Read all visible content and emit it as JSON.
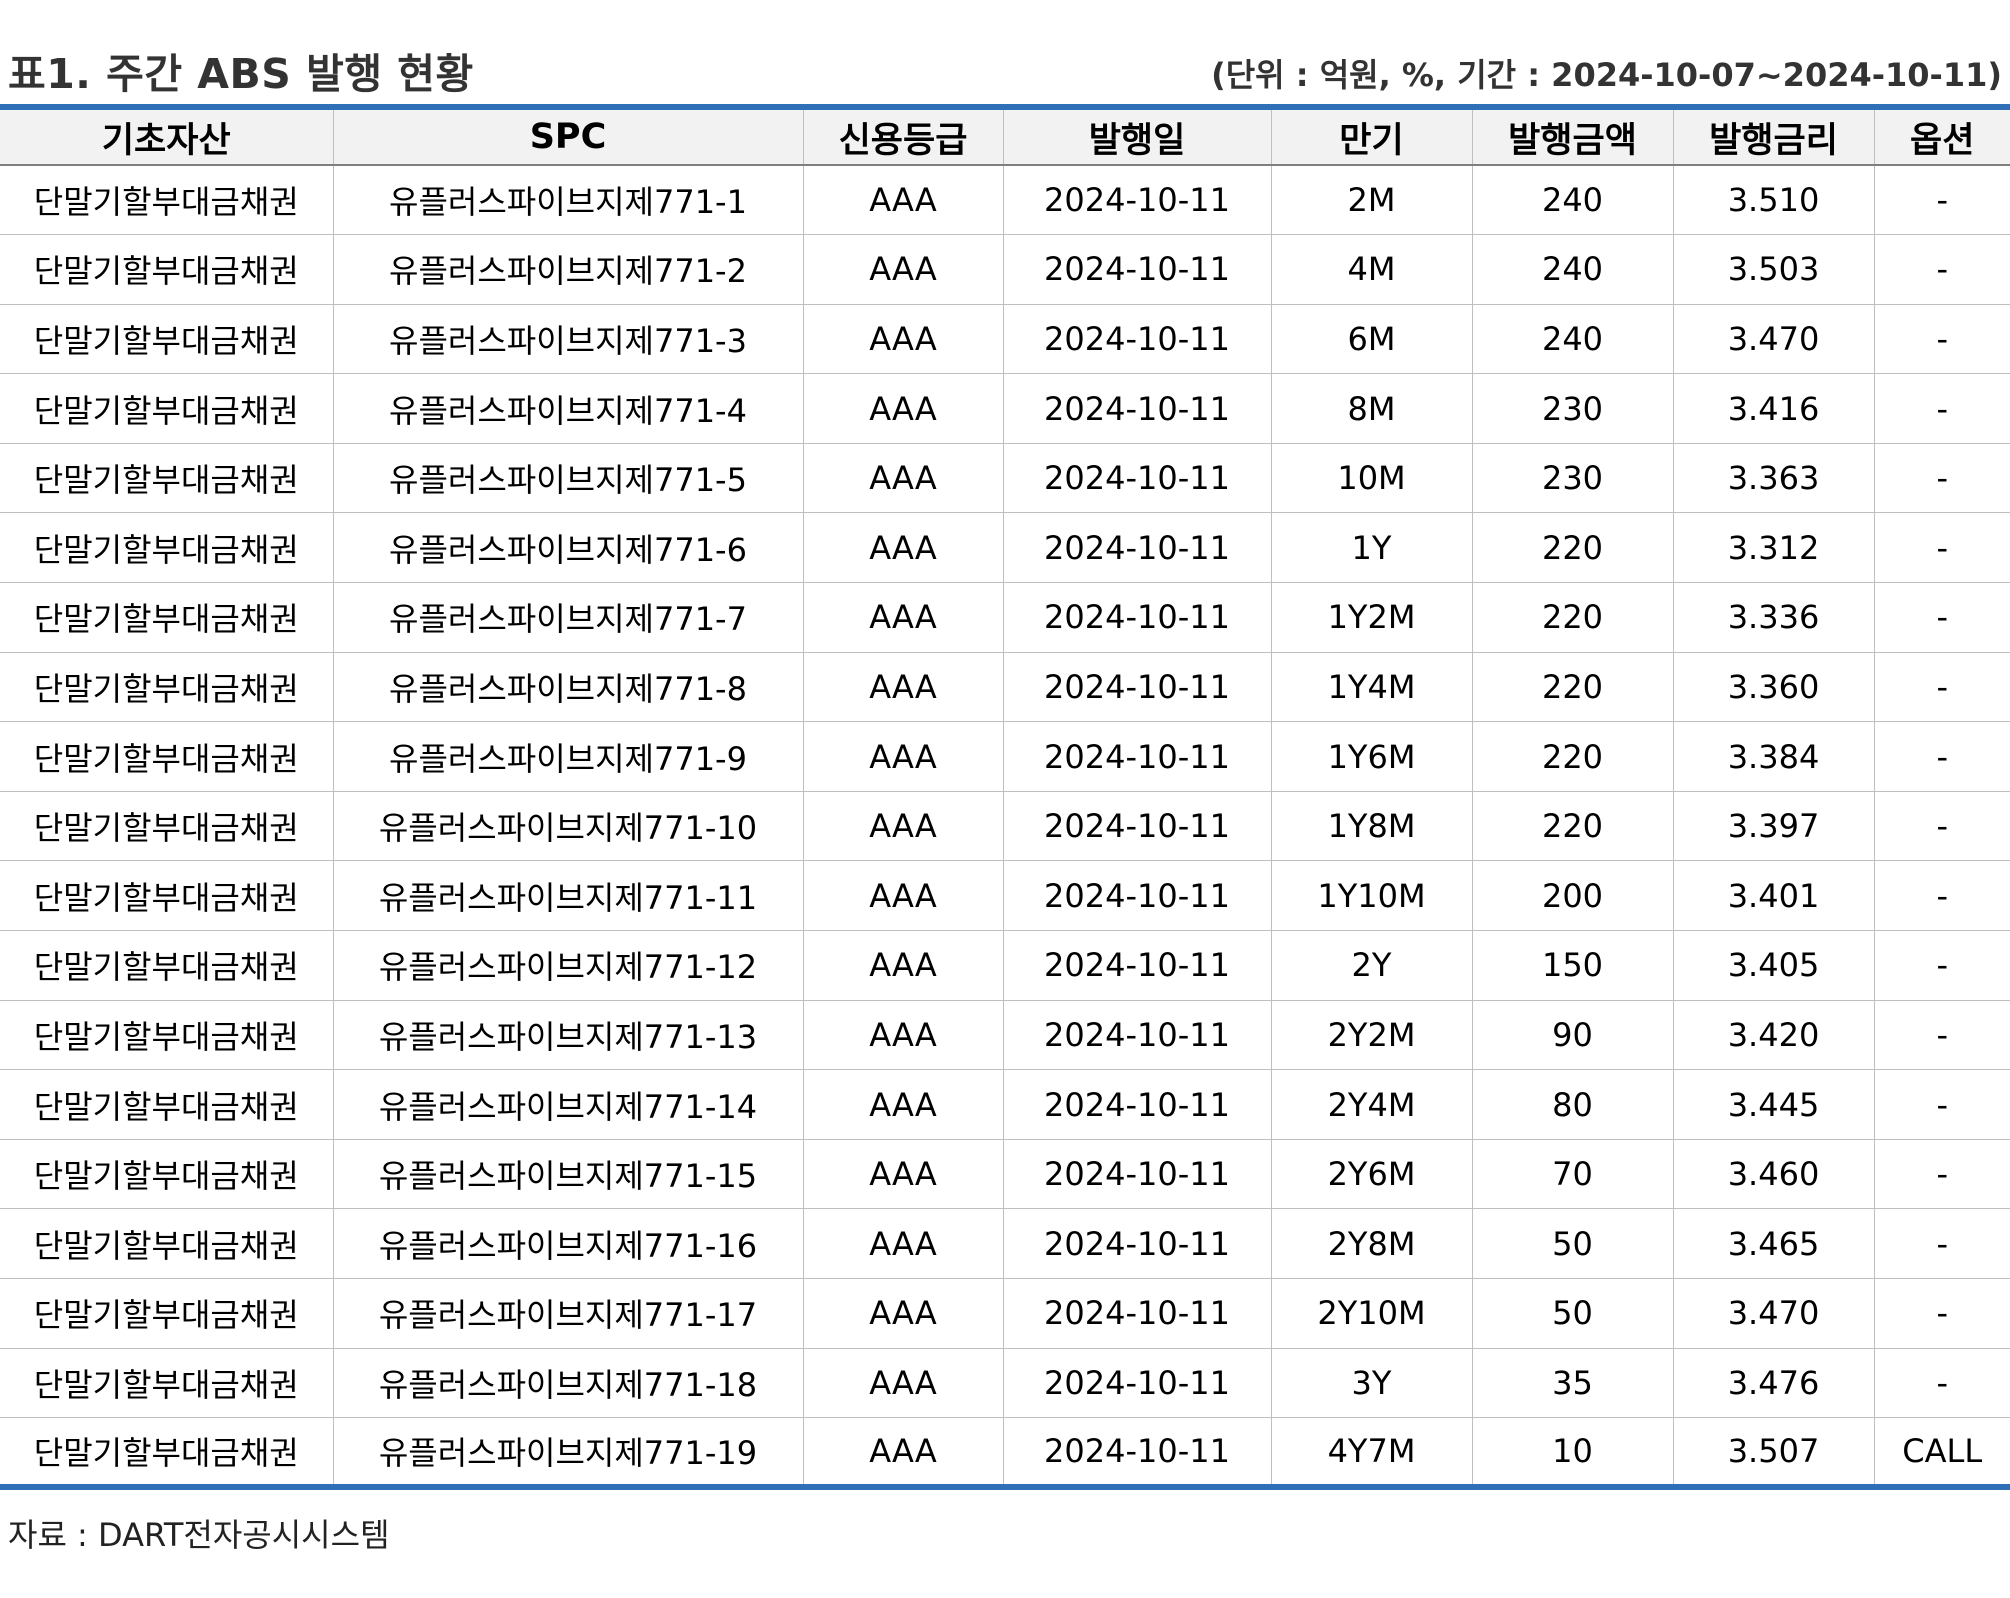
{
  "title": "표1. 주간 ABS 발행 현황",
  "unit_note": "(단위 : 억원, %, 기간 : 2024-10-07~2024-10-11)",
  "source": "자료 : DART전자공시시스템",
  "table": {
    "headers": [
      "기초자산",
      "SPC",
      "신용등급",
      "발행일",
      "만기",
      "발행금액",
      "발행금리",
      "옵션"
    ],
    "rows": [
      [
        "단말기할부대금채권",
        "유플러스파이브지제771-1",
        "AAA",
        "2024-10-11",
        "2M",
        "240",
        "3.510",
        "-"
      ],
      [
        "단말기할부대금채권",
        "유플러스파이브지제771-2",
        "AAA",
        "2024-10-11",
        "4M",
        "240",
        "3.503",
        "-"
      ],
      [
        "단말기할부대금채권",
        "유플러스파이브지제771-3",
        "AAA",
        "2024-10-11",
        "6M",
        "240",
        "3.470",
        "-"
      ],
      [
        "단말기할부대금채권",
        "유플러스파이브지제771-4",
        "AAA",
        "2024-10-11",
        "8M",
        "230",
        "3.416",
        "-"
      ],
      [
        "단말기할부대금채권",
        "유플러스파이브지제771-5",
        "AAA",
        "2024-10-11",
        "10M",
        "230",
        "3.363",
        "-"
      ],
      [
        "단말기할부대금채권",
        "유플러스파이브지제771-6",
        "AAA",
        "2024-10-11",
        "1Y",
        "220",
        "3.312",
        "-"
      ],
      [
        "단말기할부대금채권",
        "유플러스파이브지제771-7",
        "AAA",
        "2024-10-11",
        "1Y2M",
        "220",
        "3.336",
        "-"
      ],
      [
        "단말기할부대금채권",
        "유플러스파이브지제771-8",
        "AAA",
        "2024-10-11",
        "1Y4M",
        "220",
        "3.360",
        "-"
      ],
      [
        "단말기할부대금채권",
        "유플러스파이브지제771-9",
        "AAA",
        "2024-10-11",
        "1Y6M",
        "220",
        "3.384",
        "-"
      ],
      [
        "단말기할부대금채권",
        "유플러스파이브지제771-10",
        "AAA",
        "2024-10-11",
        "1Y8M",
        "220",
        "3.397",
        "-"
      ],
      [
        "단말기할부대금채권",
        "유플러스파이브지제771-11",
        "AAA",
        "2024-10-11",
        "1Y10M",
        "200",
        "3.401",
        "-"
      ],
      [
        "단말기할부대금채권",
        "유플러스파이브지제771-12",
        "AAA",
        "2024-10-11",
        "2Y",
        "150",
        "3.405",
        "-"
      ],
      [
        "단말기할부대금채권",
        "유플러스파이브지제771-13",
        "AAA",
        "2024-10-11",
        "2Y2M",
        "90",
        "3.420",
        "-"
      ],
      [
        "단말기할부대금채권",
        "유플러스파이브지제771-14",
        "AAA",
        "2024-10-11",
        "2Y4M",
        "80",
        "3.445",
        "-"
      ],
      [
        "단말기할부대금채권",
        "유플러스파이브지제771-15",
        "AAA",
        "2024-10-11",
        "2Y6M",
        "70",
        "3.460",
        "-"
      ],
      [
        "단말기할부대금채권",
        "유플러스파이브지제771-16",
        "AAA",
        "2024-10-11",
        "2Y8M",
        "50",
        "3.465",
        "-"
      ],
      [
        "단말기할부대금채권",
        "유플러스파이브지제771-17",
        "AAA",
        "2024-10-11",
        "2Y10M",
        "50",
        "3.470",
        "-"
      ],
      [
        "단말기할부대금채권",
        "유플러스파이브지제771-18",
        "AAA",
        "2024-10-11",
        "3Y",
        "35",
        "3.476",
        "-"
      ],
      [
        "단말기할부대금채권",
        "유플러스파이브지제771-19",
        "AAA",
        "2024-10-11",
        "4Y7M",
        "10",
        "3.507",
        "CALL"
      ]
    ]
  },
  "colors": {
    "accent_border": "#2e6fb8",
    "header_bg": "#f2f2f2",
    "grid": "#bfbfbf"
  }
}
